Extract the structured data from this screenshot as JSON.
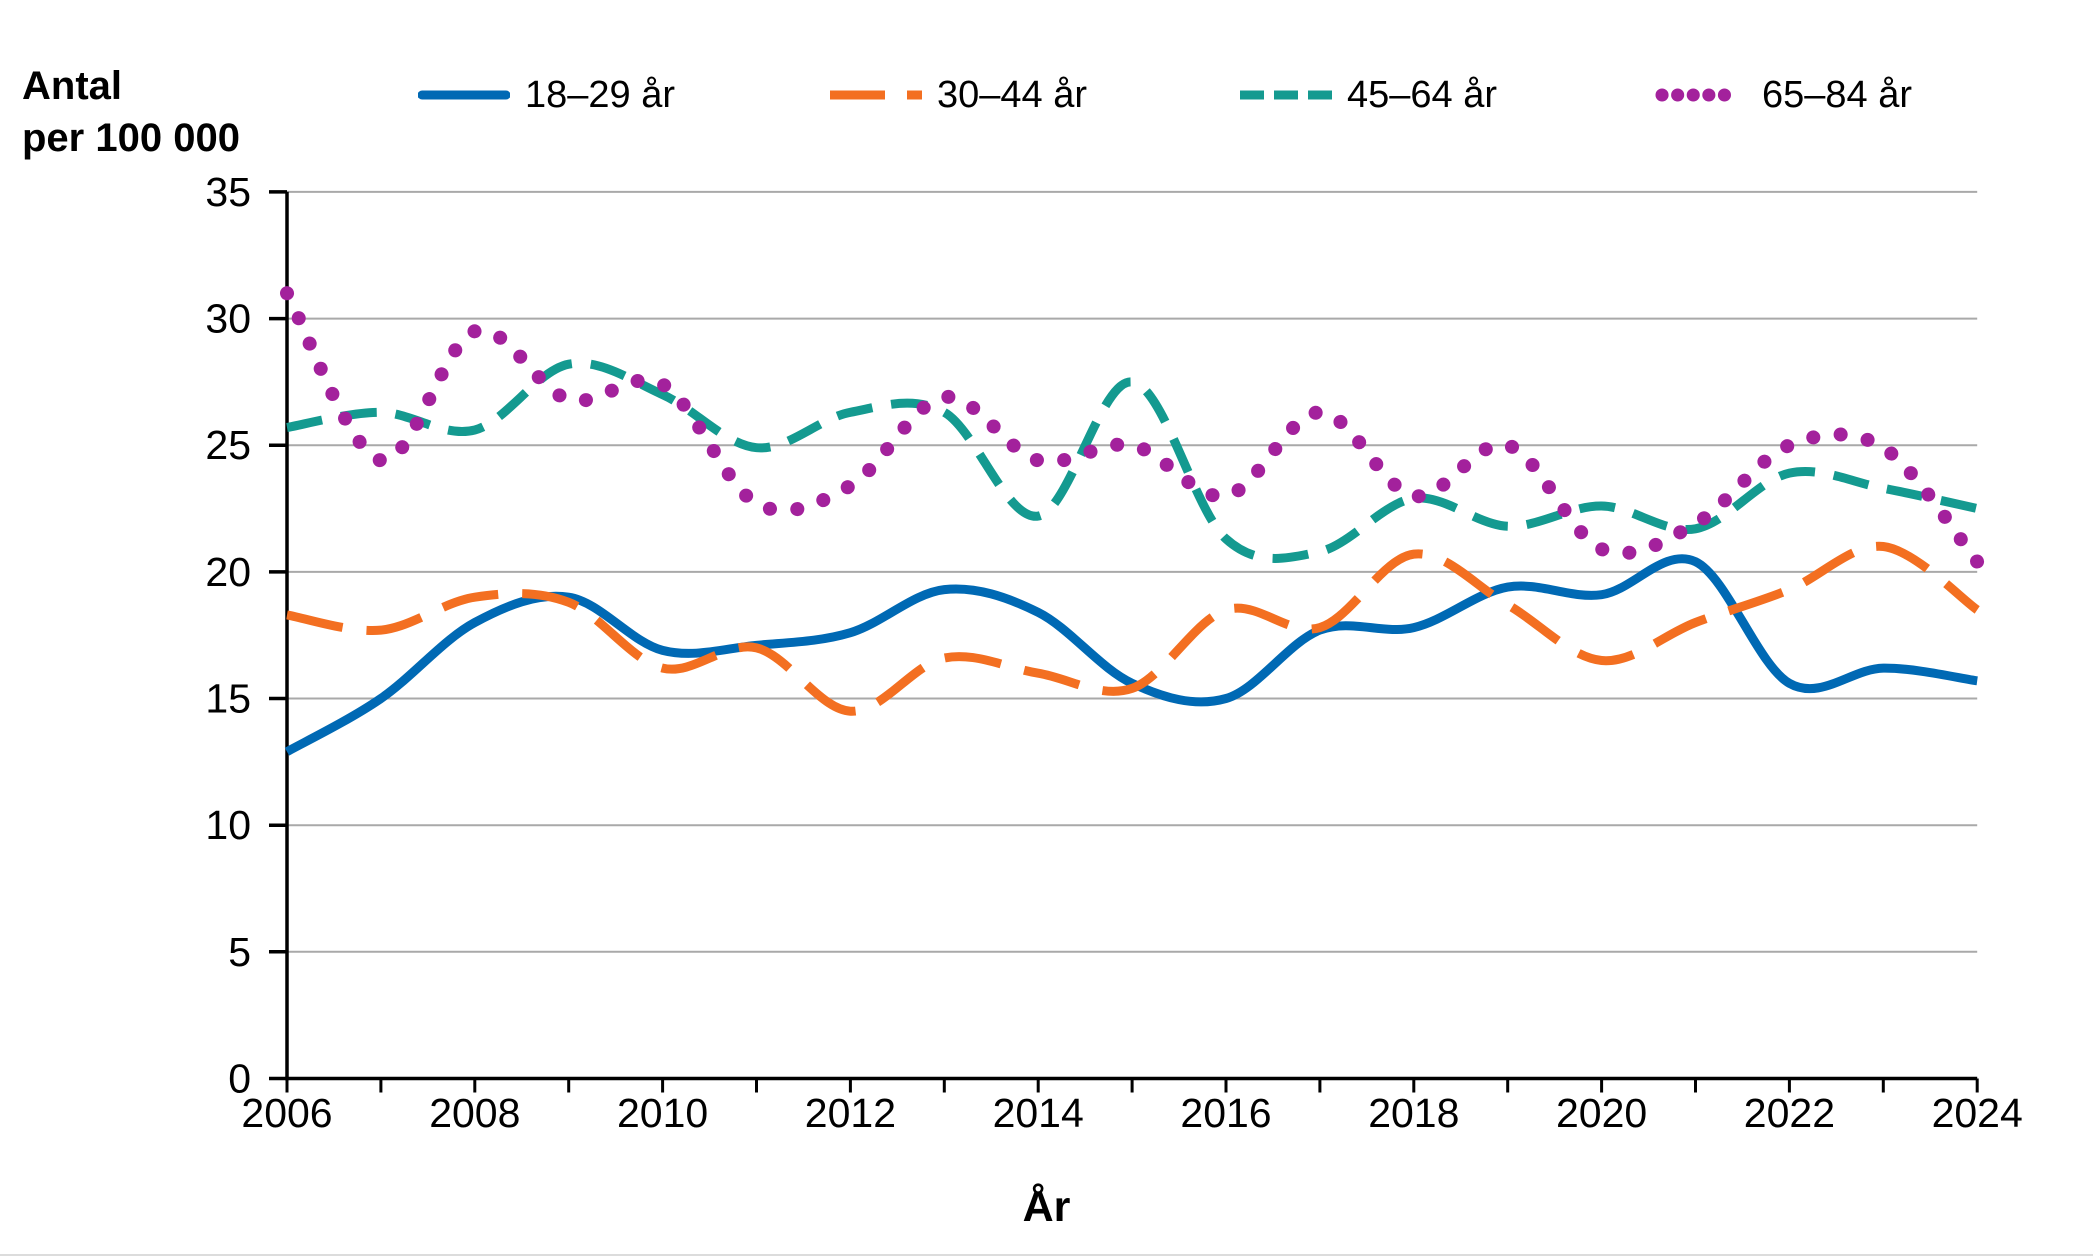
{
  "y_axis_title": {
    "line1": "Antal",
    "line2": "per 100 000"
  },
  "x_axis_title": "År",
  "colors": {
    "axis": "#000000",
    "gridline": "#a9a9a9",
    "background": "#ffffff"
  },
  "chart_data": {
    "type": "line",
    "title": "",
    "xlabel": "År",
    "ylabel": "Antal per 100 000",
    "x": [
      2006,
      2007,
      2008,
      2009,
      2010,
      2011,
      2012,
      2013,
      2014,
      2015,
      2016,
      2017,
      2018,
      2019,
      2020,
      2021,
      2022,
      2023,
      2024
    ],
    "x_tick_labels": [
      "2006",
      "2008",
      "2010",
      "2012",
      "2014",
      "2016",
      "2018",
      "2020",
      "2022",
      "2024"
    ],
    "y_ticks": [
      "0",
      "5",
      "10",
      "15",
      "20",
      "25",
      "30",
      "35"
    ],
    "ylim": [
      0,
      35
    ],
    "xlim": [
      2006,
      2024
    ],
    "grid": "horizontal-only",
    "legend_position": "top",
    "series": [
      {
        "name": "18–29 år",
        "color": "#0069b4",
        "line_style": "solid",
        "values": [
          12.9,
          15.0,
          18.0,
          19.0,
          16.9,
          17.1,
          17.6,
          19.3,
          18.4,
          15.6,
          15.0,
          17.7,
          17.8,
          19.4,
          19.1,
          20.4,
          15.6,
          16.2,
          15.7
        ]
      },
      {
        "name": "30–44 år",
        "color": "#f36f21",
        "line_style": "long-dash",
        "values": [
          18.3,
          17.7,
          19.0,
          18.8,
          16.2,
          17.0,
          14.5,
          16.6,
          16.0,
          15.4,
          18.5,
          17.8,
          20.7,
          18.7,
          16.5,
          18.0,
          19.3,
          21.0,
          18.5
        ]
      },
      {
        "name": "45–64 år",
        "color": "#149a90",
        "line_style": "dash",
        "values": [
          25.7,
          26.3,
          25.6,
          28.2,
          27.0,
          24.9,
          26.3,
          26.3,
          22.2,
          27.5,
          21.3,
          20.8,
          22.9,
          21.8,
          22.6,
          21.7,
          23.9,
          23.3,
          22.5
        ]
      },
      {
        "name": "65–84 år",
        "color": "#a3219c",
        "line_style": "dot",
        "values": [
          31.0,
          24.4,
          29.5,
          26.8,
          27.4,
          22.7,
          23.4,
          26.9,
          24.4,
          25.0,
          23.0,
          26.3,
          23.0,
          25.0,
          20.9,
          21.9,
          25.0,
          24.9,
          20.4
        ]
      }
    ]
  }
}
